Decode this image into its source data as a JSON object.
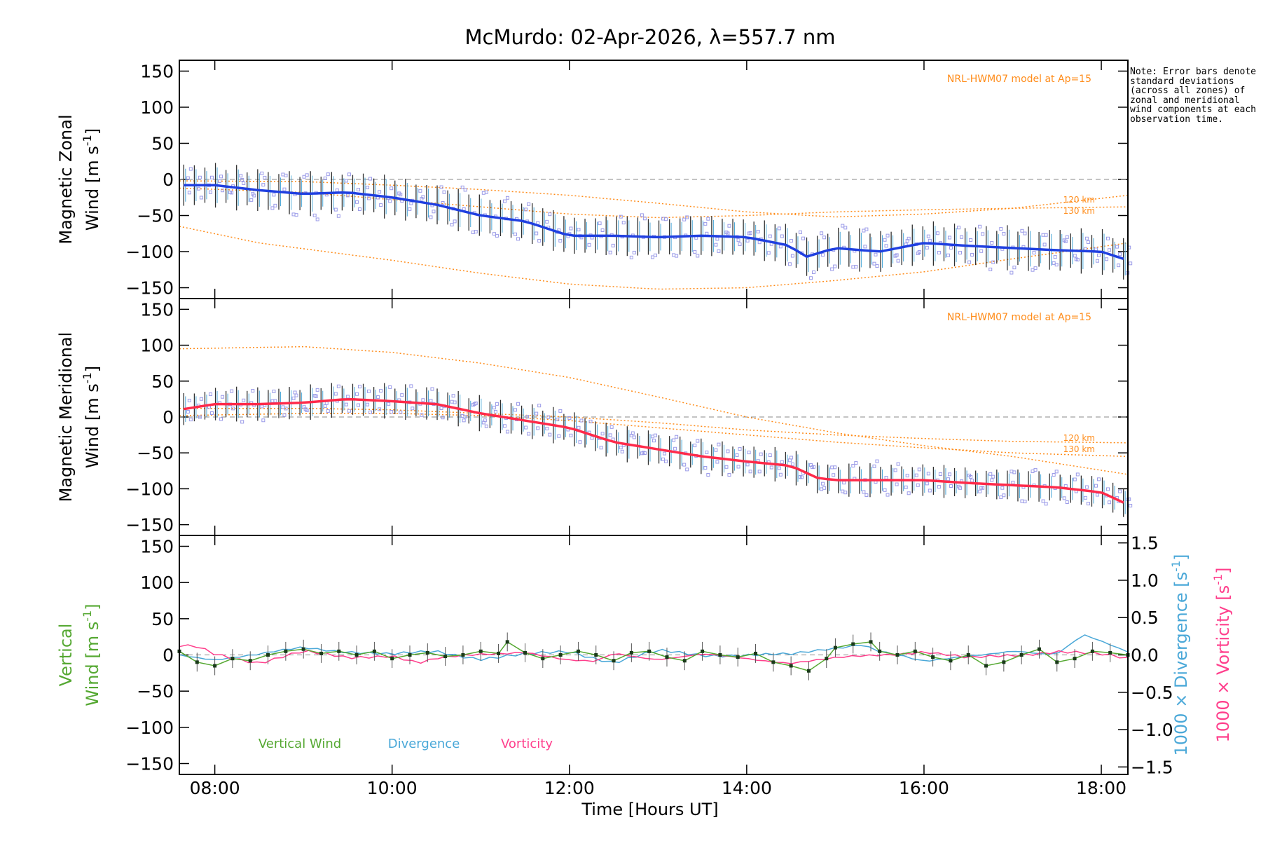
{
  "colors": {
    "zonal_line": "#1f3fe0",
    "meridional_line": "#ff2a4a",
    "model": "#ff8c1a",
    "vertical": "#55a832",
    "divergence": "#4aa8d8",
    "vorticity": "#ff3f8c",
    "zone_marker": "#9a9ae8",
    "error_bar": "#303030",
    "zero_line": "#888888"
  },
  "chart_data": {
    "type": "line",
    "title": "McMurdo: 02-Apr-2026, λ=557.7 nm",
    "xlabel": "Time [Hours UT]",
    "x_range": [
      7.6,
      18.3
    ],
    "x_ticks": [
      8,
      10,
      12,
      14,
      16,
      18
    ],
    "x_tick_labels": [
      "08:00",
      "10:00",
      "12:00",
      "14:00",
      "16:00",
      "18:00"
    ],
    "note": "Note: Error bars denote standard deviations (across all zones) of zonal and meridional wind components at each observation time.",
    "panels": [
      {
        "id": "zonal",
        "ylabel_line1": "Magnetic Zonal",
        "ylabel_line2": "Wind [m s",
        "ylabel_sup": "-1",
        "ylabel_end": "]",
        "ylim": [
          -165,
          165
        ],
        "y_ticks": [
          -150,
          -100,
          -50,
          0,
          50,
          100,
          150
        ],
        "model_label": "NRL-HWM07 model at Ap=15",
        "model_level_labels": [
          "120 km",
          "130 km"
        ],
        "series_color": "#1f3fe0",
        "std": 28,
        "knots": {
          "x": [
            7.6,
            8.0,
            8.5,
            9.0,
            9.5,
            10.0,
            10.5,
            11.0,
            11.5,
            12.0,
            12.5,
            13.0,
            13.5,
            14.0,
            14.5,
            14.65,
            15.0,
            15.5,
            16.0,
            16.5,
            17.0,
            17.5,
            18.0,
            18.3
          ],
          "y": [
            -8,
            -8,
            -15,
            -20,
            -18,
            -25,
            -35,
            -50,
            -58,
            -78,
            -78,
            -80,
            -78,
            -80,
            -92,
            -108,
            -95,
            -100,
            -88,
            -92,
            -95,
            -98,
            -100,
            -112
          ]
        },
        "model_curves": [
          {
            "name": "model-120km",
            "x": [
              7.6,
              9.0,
              10.0,
              11.0,
              12.0,
              13.0,
              14.0,
              15.0,
              16.0,
              17.0,
              18.3
            ],
            "y": [
              -2,
              -3,
              -8,
              -14,
              -22,
              -33,
              -45,
              -52,
              -48,
              -40,
              -22
            ]
          },
          {
            "name": "model-130km",
            "x": [
              7.6,
              9.0,
              10.0,
              11.0,
              12.0,
              13.0,
              14.0,
              15.0,
              16.0,
              17.0,
              18.3
            ],
            "y": [
              -12,
              -18,
              -28,
              -38,
              -48,
              -53,
              -50,
              -45,
              -42,
              -40,
              -38
            ]
          },
          {
            "name": "model-low",
            "x": [
              7.6,
              8.5,
              10.0,
              11.0,
              12.0,
              13.0,
              14.0,
              15.0,
              16.0,
              17.0,
              18.3
            ],
            "y": [
              -65,
              -88,
              -112,
              -130,
              -145,
              -152,
              -150,
              -140,
              -128,
              -110,
              -88
            ]
          }
        ]
      },
      {
        "id": "meridional",
        "ylabel_line1": "Magnetic Meridional",
        "ylabel_line2": "Wind [m s",
        "ylabel_sup": "-1",
        "ylabel_end": "]",
        "ylim": [
          -165,
          165
        ],
        "y_ticks": [
          -150,
          -100,
          -50,
          0,
          50,
          100,
          150
        ],
        "model_label": "NRL-HWM07 model at Ap=15",
        "model_level_labels": [
          "120 km",
          "130 km"
        ],
        "series_color": "#ff2a4a",
        "std": 22,
        "knots": {
          "x": [
            7.6,
            8.0,
            8.5,
            9.0,
            9.5,
            10.0,
            10.5,
            11.0,
            11.5,
            12.0,
            12.5,
            13.0,
            13.5,
            14.0,
            14.5,
            14.8,
            15.0,
            15.5,
            16.0,
            16.5,
            17.0,
            17.5,
            18.0,
            18.3
          ],
          "y": [
            10,
            18,
            18,
            20,
            25,
            22,
            18,
            5,
            -5,
            -15,
            -35,
            -45,
            -55,
            -62,
            -68,
            -85,
            -88,
            -88,
            -88,
            -92,
            -95,
            -98,
            -105,
            -122
          ]
        },
        "model_curves": [
          {
            "name": "model-high",
            "x": [
              7.6,
              9.0,
              10.0,
              11.0,
              12.0,
              13.0,
              13.5,
              14.0,
              15.0,
              16.0,
              17.0,
              18.3
            ],
            "y": [
              95,
              98,
              90,
              75,
              55,
              28,
              14,
              0,
              -22,
              -40,
              -55,
              -80
            ]
          },
          {
            "name": "model-120km",
            "x": [
              7.6,
              9.0,
              10.0,
              11.0,
              12.0,
              13.0,
              14.0,
              15.0,
              16.0,
              17.0,
              18.3
            ],
            "y": [
              12,
              12,
              10,
              5,
              0,
              -8,
              -18,
              -25,
              -30,
              -34,
              -36
            ]
          },
          {
            "name": "model-130km",
            "x": [
              7.6,
              9.0,
              10.0,
              11.0,
              12.0,
              13.0,
              14.0,
              15.0,
              16.0,
              17.0,
              18.3
            ],
            "y": [
              2,
              5,
              5,
              2,
              -5,
              -15,
              -25,
              -35,
              -43,
              -50,
              -55
            ]
          }
        ]
      },
      {
        "id": "vertical",
        "ylabel_line1": "Vertical",
        "ylabel_line2": "Wind [m s",
        "ylabel_sup": "-1",
        "ylabel_end": "]",
        "ylim": [
          -165,
          165
        ],
        "y_ticks": [
          -150,
          -100,
          -50,
          0,
          50,
          100,
          150
        ],
        "right_axis": {
          "ylim": [
            -1.6,
            1.6
          ],
          "ticks": [
            -1.5,
            -1.0,
            -0.5,
            0.0,
            0.5,
            1.0,
            1.5
          ],
          "tick_labels": [
            "−1.5",
            "−1.0",
            "−0.5",
            "0.0",
            "0.5",
            "1.0",
            "1.5"
          ],
          "label_divergence": "1000 × Divergence [s",
          "label_vorticity": "1000 × Vorticity [s",
          "label_sup": "-1",
          "label_end": "]"
        },
        "legend": [
          "Vertical Wind",
          "Divergence",
          "Vorticity"
        ],
        "vertical_wind": {
          "x": [
            7.6,
            7.8,
            8.0,
            8.2,
            8.4,
            8.6,
            8.8,
            9.0,
            9.2,
            9.4,
            9.6,
            9.8,
            10.0,
            10.2,
            10.4,
            10.6,
            10.8,
            11.0,
            11.2,
            11.3,
            11.5,
            11.7,
            11.9,
            12.1,
            12.3,
            12.5,
            12.7,
            12.9,
            13.1,
            13.3,
            13.5,
            13.7,
            13.9,
            14.1,
            14.3,
            14.5,
            14.7,
            14.9,
            15.0,
            15.2,
            15.4,
            15.5,
            15.7,
            15.9,
            16.1,
            16.3,
            16.5,
            16.7,
            16.9,
            17.1,
            17.3,
            17.5,
            17.7,
            17.9,
            18.1,
            18.3
          ],
          "y": [
            5,
            -10,
            -15,
            -5,
            -8,
            0,
            5,
            8,
            2,
            5,
            0,
            5,
            -5,
            0,
            3,
            -2,
            0,
            5,
            2,
            18,
            3,
            -5,
            0,
            5,
            0,
            -8,
            3,
            5,
            -3,
            -8,
            5,
            0,
            -3,
            2,
            -10,
            -15,
            -22,
            -5,
            10,
            15,
            18,
            5,
            0,
            5,
            -3,
            -8,
            0,
            -15,
            -10,
            0,
            8,
            -10,
            -5,
            5,
            3,
            0
          ]
        },
        "divergence": {
          "x": [
            7.6,
            8.0,
            8.5,
            9.0,
            9.5,
            10.0,
            10.5,
            11.0,
            11.5,
            12.0,
            12.5,
            13.0,
            13.5,
            14.0,
            14.5,
            15.0,
            15.3,
            15.5,
            16.0,
            16.5,
            17.0,
            17.3,
            17.5,
            17.8,
            18.0,
            18.3
          ],
          "y": [
            0.0,
            -0.05,
            0.0,
            0.1,
            0.05,
            0.0,
            0.05,
            -0.05,
            0.0,
            0.05,
            -0.1,
            0.05,
            0.0,
            0.0,
            0.0,
            0.1,
            0.15,
            0.05,
            -0.1,
            0.0,
            0.05,
            0.0,
            0.0,
            0.28,
            0.2,
            0.05
          ]
        },
        "vorticity": {
          "x": [
            7.6,
            7.8,
            8.0,
            8.2,
            8.5,
            8.8,
            9.0,
            9.5,
            10.0,
            10.3,
            10.5,
            11.0,
            11.5,
            12.0,
            12.3,
            12.5,
            13.0,
            13.5,
            14.0,
            14.5,
            15.0,
            15.5,
            16.0,
            16.5,
            17.0,
            17.5,
            18.0,
            18.3
          ],
          "y": [
            0.12,
            0.1,
            0.0,
            -0.05,
            -0.1,
            0.0,
            0.05,
            -0.05,
            0.0,
            -0.1,
            -0.05,
            0.0,
            0.05,
            -0.08,
            -0.1,
            0.02,
            -0.05,
            0.0,
            -0.05,
            -0.1,
            -0.05,
            0.0,
            0.05,
            -0.05,
            0.0,
            0.05,
            0.0,
            -0.05
          ]
        }
      }
    ]
  }
}
